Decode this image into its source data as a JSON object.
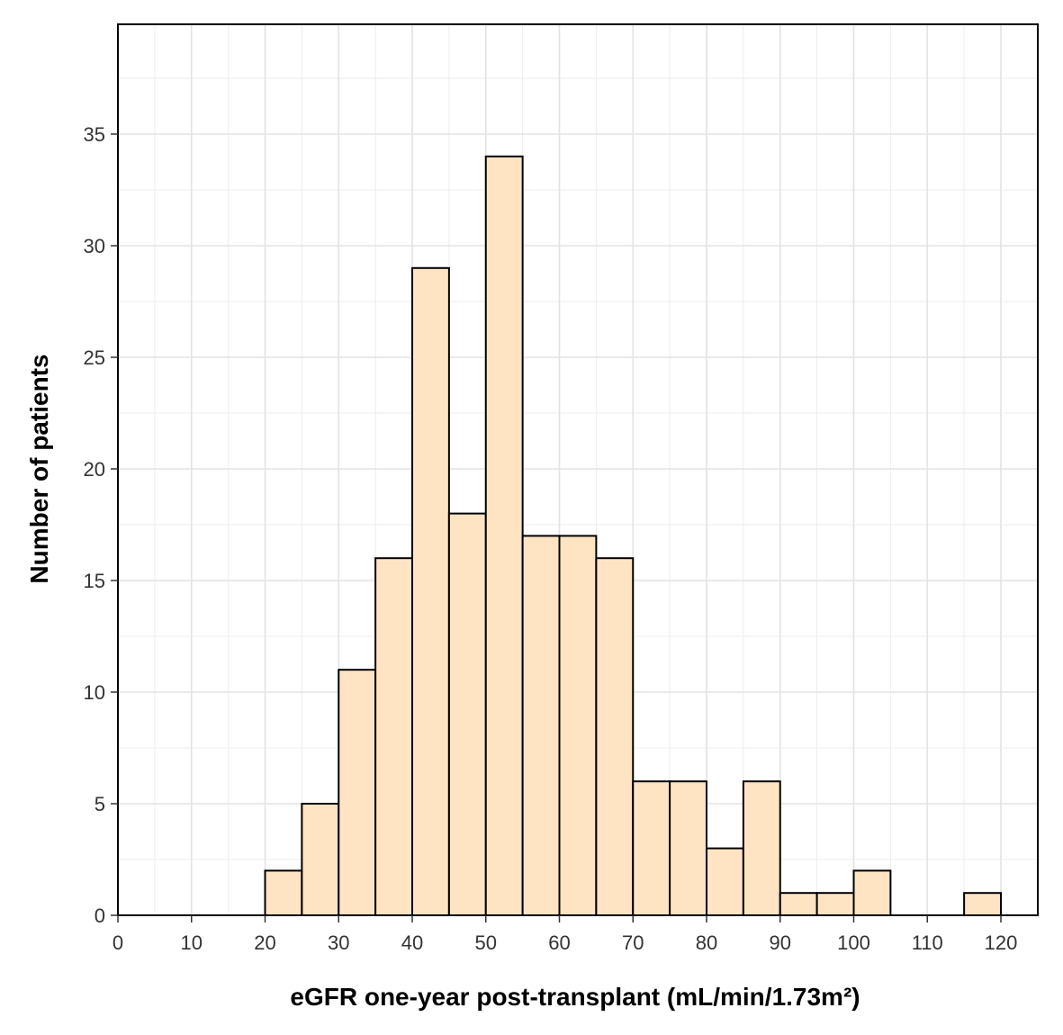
{
  "chart_data": {
    "type": "bar",
    "subtype": "histogram",
    "title": "",
    "xlabel": "eGFR one-year post-transplant (mL/min/1.73m²)",
    "ylabel": "Number of patients",
    "xlim": [
      0,
      125
    ],
    "ylim": [
      0,
      38
    ],
    "x_ticks": [
      0,
      10,
      20,
      30,
      40,
      50,
      60,
      70,
      80,
      90,
      100,
      110,
      120
    ],
    "y_ticks": [
      0,
      5,
      10,
      15,
      20,
      25,
      30,
      35
    ],
    "bin_width": 5,
    "bins": [
      {
        "start": 20,
        "end": 25,
        "count": 2
      },
      {
        "start": 25,
        "end": 30,
        "count": 5
      },
      {
        "start": 30,
        "end": 35,
        "count": 11
      },
      {
        "start": 35,
        "end": 40,
        "count": 16
      },
      {
        "start": 40,
        "end": 45,
        "count": 29
      },
      {
        "start": 45,
        "end": 50,
        "count": 18
      },
      {
        "start": 50,
        "end": 55,
        "count": 34
      },
      {
        "start": 55,
        "end": 60,
        "count": 17
      },
      {
        "start": 60,
        "end": 65,
        "count": 17
      },
      {
        "start": 65,
        "end": 70,
        "count": 16
      },
      {
        "start": 70,
        "end": 75,
        "count": 6
      },
      {
        "start": 75,
        "end": 80,
        "count": 6
      },
      {
        "start": 80,
        "end": 85,
        "count": 3
      },
      {
        "start": 85,
        "end": 90,
        "count": 6
      },
      {
        "start": 90,
        "end": 95,
        "count": 1
      },
      {
        "start": 95,
        "end": 100,
        "count": 1
      },
      {
        "start": 100,
        "end": 105,
        "count": 2
      },
      {
        "start": 105,
        "end": 110,
        "count": 0
      },
      {
        "start": 110,
        "end": 115,
        "count": 0
      },
      {
        "start": 115,
        "end": 120,
        "count": 1
      }
    ],
    "bar_fill": "#ffe4c4",
    "bar_stroke": "#000000",
    "grid": true,
    "legend": "none"
  }
}
